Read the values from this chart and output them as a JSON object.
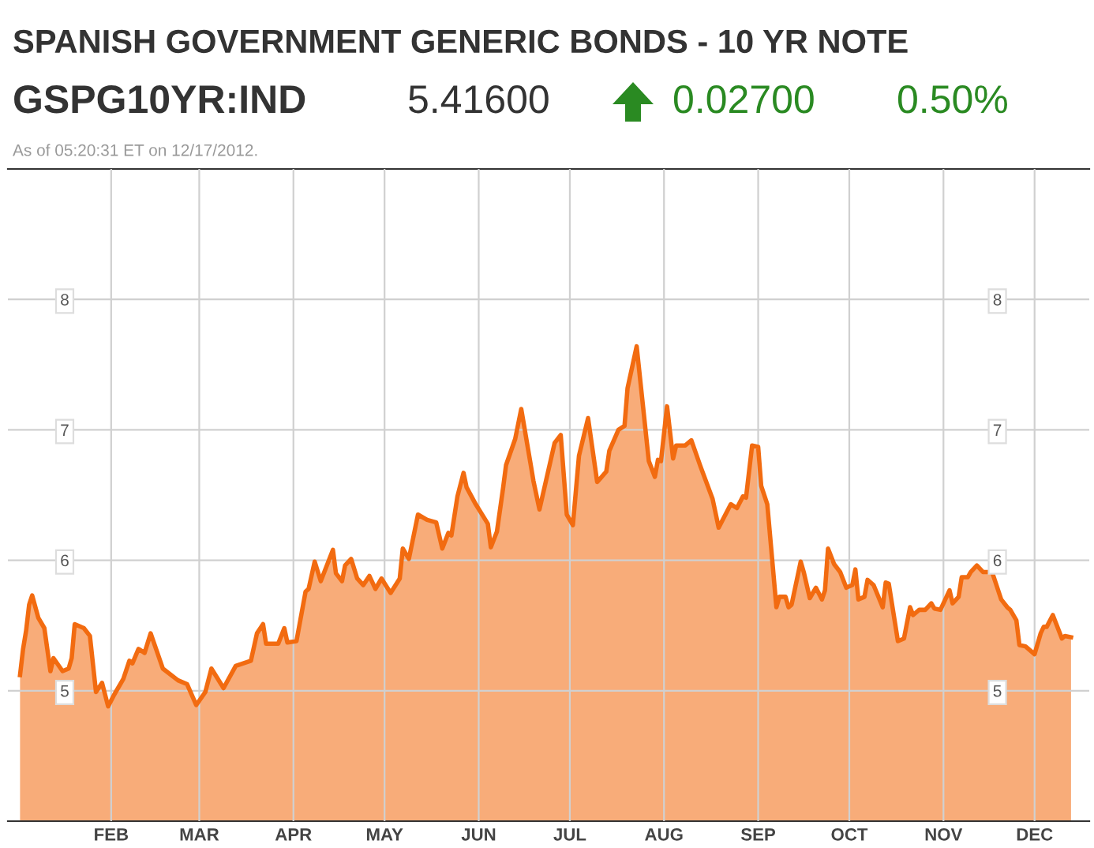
{
  "chart_data": {
    "type": "area",
    "title": "SPANISH GOVERNMENT GENERIC BONDS - 10 YR NOTE",
    "annotations": [
      "GSPG10YR:IND",
      "5.41600",
      "0.02700",
      "0.50%",
      "As of 05:20:31 ET on 12/17/2012."
    ],
    "x": [
      "2012-01-02",
      "2012-01-03",
      "2012-01-04",
      "2012-01-05",
      "2012-01-06",
      "2012-01-08",
      "2012-01-10",
      "2012-01-12",
      "2012-01-13",
      "2012-01-16",
      "2012-01-18",
      "2012-01-19",
      "2012-01-20",
      "2012-01-23",
      "2012-01-25",
      "2012-01-27",
      "2012-01-29",
      "2012-01-31",
      "2012-02-02",
      "2012-02-05",
      "2012-02-07",
      "2012-02-08",
      "2012-02-10",
      "2012-02-12",
      "2012-02-14",
      "2012-02-18",
      "2012-02-23",
      "2012-02-26",
      "2012-02-29",
      "2012-03-03",
      "2012-03-05",
      "2012-03-09",
      "2012-03-13",
      "2012-03-18",
      "2012-03-20",
      "2012-03-22",
      "2012-03-23",
      "2012-03-27",
      "2012-03-29",
      "2012-03-30",
      "2012-04-02",
      "2012-04-05",
      "2012-04-06",
      "2012-04-08",
      "2012-04-10",
      "2012-04-14",
      "2012-04-15",
      "2012-04-17",
      "2012-04-18",
      "2012-04-20",
      "2012-04-22",
      "2012-04-24",
      "2012-04-26",
      "2012-04-28",
      "2012-04-30",
      "2012-05-03",
      "2012-05-06",
      "2012-05-07",
      "2012-05-09",
      "2012-05-12",
      "2012-05-15",
      "2012-05-18",
      "2012-05-20",
      "2012-05-22",
      "2012-05-23",
      "2012-05-25",
      "2012-05-27",
      "2012-05-28",
      "2012-05-31",
      "2012-06-04",
      "2012-06-05",
      "2012-06-07",
      "2012-06-09",
      "2012-06-10",
      "2012-06-13",
      "2012-06-15",
      "2012-06-18",
      "2012-06-19",
      "2012-06-21",
      "2012-06-26",
      "2012-06-28",
      "2012-06-30",
      "2012-07-02",
      "2012-07-04",
      "2012-07-07",
      "2012-07-10",
      "2012-07-13",
      "2012-07-14",
      "2012-07-17",
      "2012-07-19",
      "2012-07-20",
      "2012-07-23",
      "2012-07-25",
      "2012-07-27",
      "2012-07-29",
      "2012-07-30",
      "2012-07-31",
      "2012-08-02",
      "2012-08-04",
      "2012-08-05",
      "2012-08-08",
      "2012-08-10",
      "2012-08-13",
      "2012-08-17",
      "2012-08-19",
      "2012-08-23",
      "2012-08-25",
      "2012-08-27",
      "2012-08-28",
      "2012-08-30",
      "2012-09-01",
      "2012-09-02",
      "2012-09-04",
      "2012-09-07",
      "2012-09-08",
      "2012-09-10",
      "2012-09-11",
      "2012-09-12",
      "2012-09-15",
      "2012-09-16",
      "2012-09-18",
      "2012-09-20",
      "2012-09-22",
      "2012-09-23",
      "2012-09-24",
      "2012-09-26",
      "2012-09-28",
      "2012-09-30",
      "2012-10-02",
      "2012-10-03",
      "2012-10-04",
      "2012-10-06",
      "2012-10-07",
      "2012-10-09",
      "2012-10-12",
      "2012-10-13",
      "2012-10-14",
      "2012-10-17",
      "2012-10-19",
      "2012-10-21",
      "2012-10-22",
      "2012-10-24",
      "2012-10-26",
      "2012-10-28",
      "2012-10-29",
      "2012-10-31",
      "2012-11-03",
      "2012-11-04",
      "2012-11-06",
      "2012-11-07",
      "2012-11-09",
      "2012-11-10",
      "2012-11-12",
      "2012-11-14",
      "2012-11-17",
      "2012-11-20",
      "2012-11-22",
      "2012-11-23",
      "2012-11-25",
      "2012-11-26",
      "2012-11-28",
      "2012-12-01",
      "2012-12-03",
      "2012-12-04",
      "2012-12-05",
      "2012-12-07",
      "2012-12-10",
      "2012-12-11",
      "2012-12-13"
    ],
    "series": [
      {
        "color": "#f26b10",
        "values": [
          5.12,
          5.32,
          5.46,
          5.66,
          5.73,
          5.56,
          5.48,
          5.15,
          5.25,
          5.15,
          5.17,
          5.25,
          5.51,
          5.48,
          5.42,
          4.99,
          5.06,
          4.88,
          4.97,
          5.09,
          5.23,
          5.21,
          5.32,
          5.29,
          5.44,
          5.17,
          5.08,
          5.05,
          4.89,
          4.99,
          5.17,
          5.02,
          5.19,
          5.23,
          5.44,
          5.51,
          5.36,
          5.36,
          5.48,
          5.37,
          5.38,
          5.76,
          5.78,
          5.99,
          5.84,
          6.08,
          5.9,
          5.84,
          5.96,
          6.01,
          5.86,
          5.81,
          5.88,
          5.78,
          5.86,
          5.75,
          5.86,
          6.09,
          6.01,
          6.35,
          6.31,
          6.29,
          6.09,
          6.21,
          6.19,
          6.49,
          6.67,
          6.56,
          6.43,
          6.28,
          6.1,
          6.22,
          6.55,
          6.73,
          6.93,
          7.16,
          6.75,
          6.61,
          6.39,
          6.9,
          6.96,
          6.35,
          6.27,
          6.8,
          7.09,
          6.6,
          6.68,
          6.84,
          7.0,
          7.03,
          7.32,
          7.64,
          7.2,
          6.76,
          6.64,
          6.77,
          6.76,
          7.18,
          6.78,
          6.88,
          6.88,
          6.92,
          6.72,
          6.47,
          6.25,
          6.43,
          6.4,
          6.49,
          6.48,
          6.88,
          6.87,
          6.57,
          6.43,
          5.64,
          5.72,
          5.72,
          5.64,
          5.66,
          5.99,
          5.91,
          5.71,
          5.79,
          5.7,
          5.77,
          6.09,
          5.97,
          5.91,
          5.79,
          5.81,
          5.93,
          5.7,
          5.72,
          5.85,
          5.81,
          5.64,
          5.83,
          5.82,
          5.38,
          5.4,
          5.64,
          5.58,
          5.62,
          5.62,
          5.67,
          5.63,
          5.62,
          5.77,
          5.67,
          5.72,
          5.87,
          5.87,
          5.91,
          5.96,
          5.91,
          5.91,
          5.7,
          5.64,
          5.62,
          5.54,
          5.35,
          5.34,
          5.28,
          5.44,
          5.49,
          5.49,
          5.58,
          5.4,
          5.42,
          5.41
        ]
      }
    ],
    "xlim": [
      "2011-12-29",
      "2012-12-19"
    ],
    "xticks": [
      {
        "value": "2012-02-01",
        "label": "FEB"
      },
      {
        "value": "2012-03-01",
        "label": "MAR"
      },
      {
        "value": "2012-04-01",
        "label": "APR"
      },
      {
        "value": "2012-05-01",
        "label": "MAY"
      },
      {
        "value": "2012-06-01",
        "label": "JUN"
      },
      {
        "value": "2012-07-01",
        "label": "JUL"
      },
      {
        "value": "2012-08-01",
        "label": "AUG"
      },
      {
        "value": "2012-09-01",
        "label": "SEP"
      },
      {
        "value": "2012-10-01",
        "label": "OCT"
      },
      {
        "value": "2012-11-01",
        "label": "NOV"
      },
      {
        "value": "2012-12-01",
        "label": "DEC"
      }
    ],
    "ylim": [
      4,
      9
    ],
    "yticks": [
      5,
      6,
      7,
      8
    ],
    "y2lim": [
      4,
      9
    ],
    "y2ticks": [
      5,
      6,
      7,
      8
    ],
    "grid": true,
    "legend": false
  }
}
